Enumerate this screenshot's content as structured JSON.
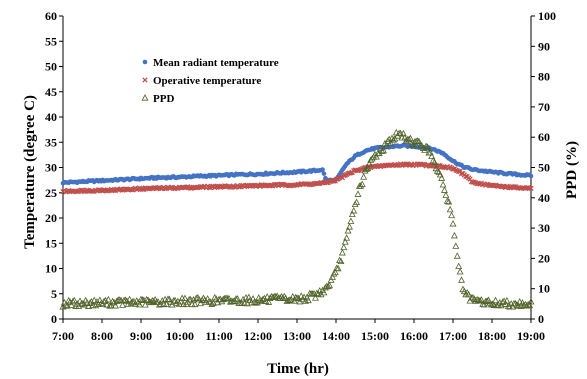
{
  "chart_data": {
    "type": "scatter",
    "xlabel": "Time (hr)",
    "ylabel_left": "Temperature (degree C)",
    "ylabel_right": "PPD (%)",
    "x_ticks": [
      "7:00",
      "8:00",
      "9:00",
      "10:00",
      "11:00",
      "12:00",
      "13:00",
      "14:00",
      "15:00",
      "16:00",
      "17:00",
      "18:00",
      "19:00"
    ],
    "xlim": [
      7,
      19
    ],
    "ylim_left": [
      0,
      60
    ],
    "ylim_right": [
      0,
      100
    ],
    "left_ticks": [
      "0",
      "5",
      "10",
      "15",
      "20",
      "25",
      "30",
      "35",
      "40",
      "45",
      "50",
      "55",
      "60"
    ],
    "right_ticks": [
      "0",
      "10",
      "20",
      "30",
      "40",
      "50",
      "60",
      "70",
      "80",
      "90",
      "100"
    ],
    "grid": false,
    "legend_position": "upper-left",
    "series": [
      {
        "name": "Mean radiant temperature",
        "axis": "left",
        "marker": "circle",
        "color": "#4472C4",
        "x": [
          7.0,
          7.5,
          8.0,
          8.5,
          9.0,
          9.5,
          10.0,
          10.5,
          11.0,
          11.5,
          12.0,
          12.5,
          13.0,
          13.5,
          13.65,
          13.75,
          14.0,
          14.25,
          14.5,
          14.75,
          15.0,
          15.25,
          15.5,
          15.75,
          16.0,
          16.25,
          16.5,
          16.75,
          17.0,
          17.25,
          17.5,
          18.0,
          18.5,
          19.0
        ],
        "y": [
          27.0,
          27.2,
          27.4,
          27.6,
          27.8,
          28.0,
          28.1,
          28.3,
          28.4,
          28.6,
          28.7,
          28.9,
          29.1,
          29.4,
          29.6,
          27.5,
          27.4,
          30.5,
          32.3,
          33.3,
          33.8,
          34.0,
          34.2,
          34.3,
          34.2,
          34.0,
          33.6,
          32.8,
          31.3,
          30.2,
          29.6,
          29.1,
          28.7,
          28.4
        ]
      },
      {
        "name": "Operative temperature",
        "axis": "left",
        "marker": "x",
        "color": "#C0504D",
        "x": [
          7.0,
          7.5,
          8.0,
          8.5,
          9.0,
          9.5,
          10.0,
          10.5,
          11.0,
          11.5,
          12.0,
          12.5,
          13.0,
          13.5,
          13.75,
          14.0,
          14.25,
          14.5,
          14.75,
          15.0,
          15.25,
          15.5,
          15.75,
          16.0,
          16.25,
          16.5,
          16.75,
          17.0,
          17.25,
          17.5,
          18.0,
          18.5,
          19.0
        ],
        "y": [
          25.3,
          25.4,
          25.5,
          25.6,
          25.8,
          25.9,
          26.0,
          26.1,
          26.2,
          26.3,
          26.4,
          26.5,
          26.6,
          26.8,
          27.0,
          27.5,
          28.5,
          29.4,
          29.9,
          30.2,
          30.4,
          30.5,
          30.6,
          30.6,
          30.5,
          30.4,
          30.2,
          29.8,
          28.8,
          27.1,
          26.4,
          26.1,
          25.8
        ]
      },
      {
        "name": "PPD",
        "axis": "right",
        "marker": "triangle",
        "color": "#4F6228",
        "x": [
          7.0,
          7.5,
          8.0,
          8.5,
          9.0,
          9.5,
          10.0,
          10.5,
          11.0,
          11.5,
          12.0,
          12.5,
          13.0,
          13.25,
          13.5,
          13.75,
          14.0,
          14.1,
          14.25,
          14.4,
          14.5,
          14.6,
          14.75,
          14.9,
          15.0,
          15.1,
          15.25,
          15.4,
          15.5,
          15.6,
          15.75,
          15.9,
          16.0,
          16.1,
          16.25,
          16.4,
          16.5,
          16.6,
          16.75,
          16.9,
          17.0,
          17.1,
          17.2,
          17.3,
          17.4,
          17.5,
          17.75,
          18.0,
          18.5,
          19.0
        ],
        "y": [
          5.0,
          5.2,
          5.3,
          5.4,
          5.5,
          5.6,
          5.8,
          5.9,
          6.0,
          6.1,
          6.2,
          6.4,
          6.5,
          7.0,
          8.0,
          10.0,
          15.0,
          19.0,
          25.0,
          33.0,
          38.0,
          43.0,
          48.0,
          52.0,
          54.0,
          55.0,
          57.0,
          59.0,
          60.0,
          61.0,
          60.0,
          59.0,
          58.0,
          58.0,
          57.0,
          55.0,
          53.0,
          49.0,
          44.0,
          38.0,
          31.0,
          22.0,
          13.0,
          8.5,
          7.0,
          6.0,
          5.5,
          5.2,
          5.0,
          5.0
        ]
      }
    ]
  }
}
